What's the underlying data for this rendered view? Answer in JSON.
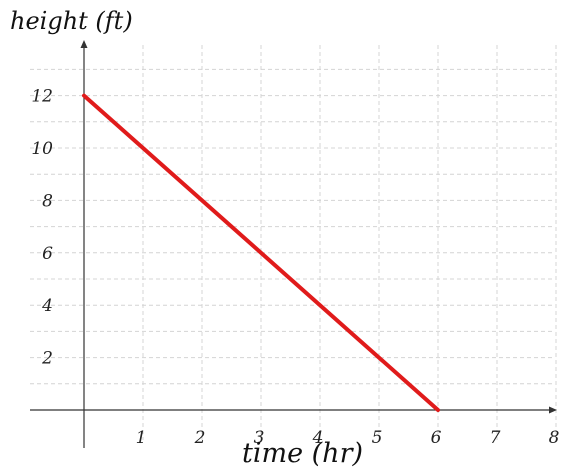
{
  "chart_data": {
    "type": "line",
    "title": "",
    "xlabel": "time (hr)",
    "ylabel": "height (ft)",
    "xlim": [
      0,
      8
    ],
    "ylim": [
      0,
      12
    ],
    "x_ticks": [
      "1",
      "2",
      "3",
      "4",
      "5",
      "6",
      "7",
      "8"
    ],
    "y_ticks": [
      "2",
      "4",
      "6",
      "8",
      "10",
      "12"
    ],
    "grid": true,
    "series": [
      {
        "color": "#e01b1b",
        "points": [
          {
            "x": 0,
            "y": 12
          },
          {
            "x": 6,
            "y": 0
          }
        ]
      }
    ]
  }
}
